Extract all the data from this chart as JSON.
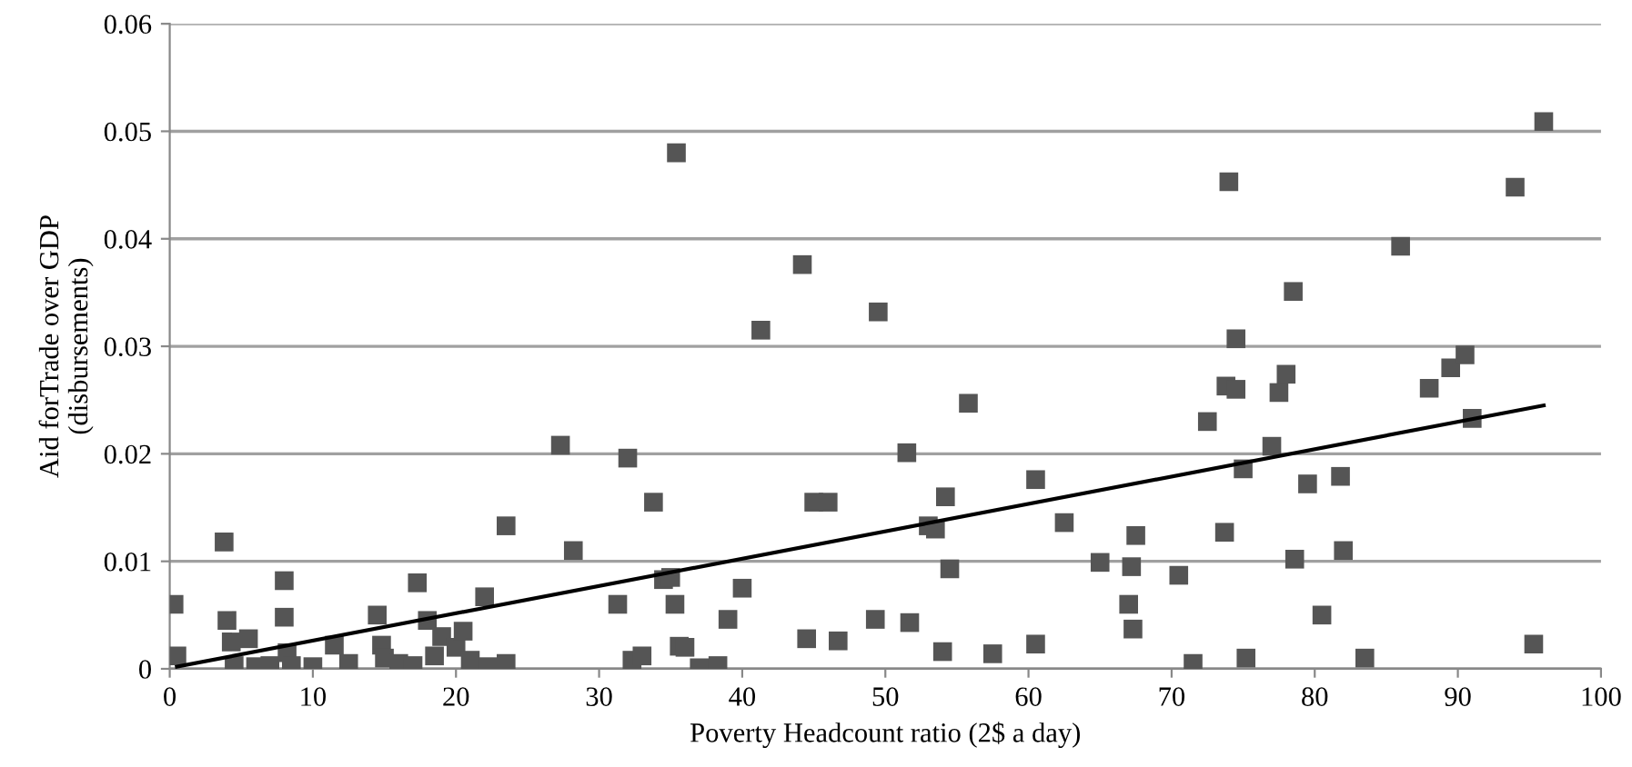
{
  "chart_data": {
    "type": "scatter",
    "xlabel": "Poverty Headcount ratio (2$ a day)",
    "ylabel": "Aid forTrade over GDP\n(disbursements)",
    "xlim": [
      0,
      100
    ],
    "ylim": [
      0,
      0.06
    ],
    "xticks": [
      0,
      10,
      20,
      30,
      40,
      50,
      60,
      70,
      80,
      90,
      100
    ],
    "yticks": [
      {
        "value": 0,
        "label": "0"
      },
      0.01,
      0.02,
      0.03,
      0.04,
      0.05,
      0.06
    ],
    "grid": "y",
    "marker": "square",
    "legend": false,
    "series": [
      {
        "color": "#555555",
        "x": [
          0.3,
          0.5,
          3.8,
          4,
          4.3,
          4.5,
          5.5,
          6,
          7,
          8,
          8,
          8.2,
          8.5,
          10,
          11.5,
          12.5,
          14.5,
          14.8,
          15,
          16,
          17,
          17.3,
          18,
          18.5,
          19,
          20,
          20.5,
          21,
          22,
          22.2,
          23.5,
          23.5,
          27.3,
          28.2,
          31.3,
          32,
          32.3,
          33,
          33.8,
          34.5,
          35,
          35.3,
          35.4,
          35.6,
          36,
          37,
          38.3,
          39,
          40,
          41.3,
          44.2,
          44.5,
          45,
          46,
          46.7,
          49.5,
          49.3,
          51.5,
          51.7,
          53,
          53.5,
          54,
          54.2,
          54.5,
          55.8,
          57.5,
          60.5,
          60.5,
          62.5,
          65,
          67,
          67.2,
          67.3,
          67.5,
          70.5,
          71.5,
          72.5,
          73.7,
          73.8,
          74,
          74.5,
          74.5,
          75,
          75.2,
          77,
          77.5,
          78,
          78.5,
          78.6,
          79.5,
          80.5,
          81.8,
          82,
          83.5,
          86,
          88,
          89.5,
          90.5,
          91,
          94,
          95.3,
          96
        ],
        "values": [
          0.006,
          0.0012,
          0.0118,
          0.0045,
          0.0025,
          0.0003,
          0.0028,
          0.0002,
          0.0003,
          0.0082,
          0.0048,
          0.0015,
          0.0003,
          0.0002,
          0.0022,
          0.0005,
          0.005,
          0.0022,
          0.001,
          0.0005,
          0.0003,
          0.008,
          0.0045,
          0.0012,
          0.003,
          0.002,
          0.0035,
          0.0008,
          0.0067,
          0.0002,
          0.0133,
          0.0005,
          0.0208,
          0.011,
          0.006,
          0.0196,
          0.0008,
          0.0012,
          0.0155,
          0.0083,
          0.0085,
          0.006,
          0.048,
          0.0021,
          0.002,
          0.0001,
          0.0003,
          0.0046,
          0.0075,
          0.0315,
          0.0376,
          0.0028,
          0.0155,
          0.0155,
          0.0026,
          0.0332,
          0.0046,
          0.0201,
          0.0043,
          0.0133,
          0.013,
          0.0016,
          0.016,
          0.0093,
          0.0247,
          0.0014,
          0.0176,
          0.0023,
          0.0136,
          0.0099,
          0.006,
          0.0095,
          0.0037,
          0.0124,
          0.0087,
          0.0005,
          0.023,
          0.0127,
          0.0263,
          0.0453,
          0.0307,
          0.026,
          0.0186,
          0.001,
          0.0207,
          0.0257,
          0.0274,
          0.0351,
          0.0102,
          0.0172,
          0.005,
          0.0179,
          0.011,
          0.001,
          0.0393,
          0.0261,
          0.028,
          0.0292,
          0.0233,
          0.0448,
          0.0023,
          0.0509
        ]
      },
      {
        "type": "line",
        "color": "#000000",
        "marker": "none",
        "line_style": "solid",
        "x": [
          0.5,
          96
        ],
        "values": [
          0.0002,
          0.0245
        ]
      }
    ]
  }
}
